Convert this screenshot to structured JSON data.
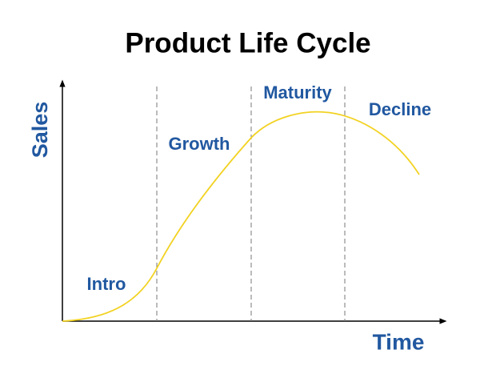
{
  "title": "Product Life Cycle",
  "axes": {
    "y_label": "Sales",
    "x_label": "Time"
  },
  "stages": [
    {
      "label": "Intro"
    },
    {
      "label": "Growth"
    },
    {
      "label": "Maturity"
    },
    {
      "label": "Decline"
    }
  ]
}
